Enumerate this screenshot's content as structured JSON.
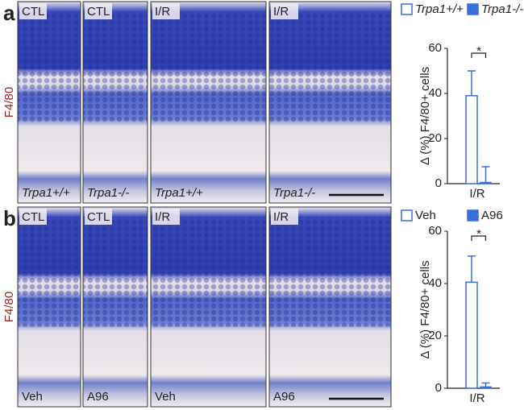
{
  "panels": [
    {
      "letter": "a",
      "side_label": "F4/80",
      "images": [
        {
          "top": "CTL",
          "bottom": "Trpa1+/+"
        },
        {
          "top": "CTL",
          "bottom": "Trpa1-/-"
        },
        {
          "top": "I/R",
          "bottom": "Trpa1+/+"
        },
        {
          "top": "I/R",
          "bottom": "Trpa1-/-"
        }
      ]
    },
    {
      "letter": "b",
      "side_label": "F4/80",
      "images": [
        {
          "top": "CTL",
          "bottom": "Veh"
        },
        {
          "top": "CTL",
          "bottom": "A96"
        },
        {
          "top": "I/R",
          "bottom": "Veh"
        },
        {
          "top": "I/R",
          "bottom": "A96"
        }
      ]
    }
  ],
  "chart_data": [
    {
      "type": "bar",
      "ylabel": "Δ (%) F4/80+ cells",
      "categories": [
        "I/R"
      ],
      "significance": "*",
      "series": [
        {
          "name": "Trpa1+/+",
          "color": "#3a6fd8",
          "filled": false,
          "values": [
            39
          ],
          "errors": [
            11
          ]
        },
        {
          "name": "Trpa1-/-",
          "color": "#3a6fd8",
          "filled": true,
          "values": [
            0.5
          ],
          "errors": [
            7
          ]
        }
      ],
      "ylim": [
        0,
        60
      ],
      "yticks": [
        0,
        20,
        40,
        60
      ]
    },
    {
      "type": "bar",
      "ylabel": "Δ (%) F4/80+ cells",
      "categories": [
        "I/R"
      ],
      "significance": "*",
      "series": [
        {
          "name": "Veh",
          "color": "#3a6fd8",
          "filled": false,
          "values": [
            40.5
          ],
          "errors": [
            10
          ]
        },
        {
          "name": "A96",
          "color": "#3a6fd8",
          "filled": true,
          "values": [
            0.5
          ],
          "errors": [
            1.5
          ]
        }
      ],
      "ylim": [
        0,
        60
      ],
      "yticks": [
        0,
        20,
        40,
        60
      ]
    }
  ]
}
